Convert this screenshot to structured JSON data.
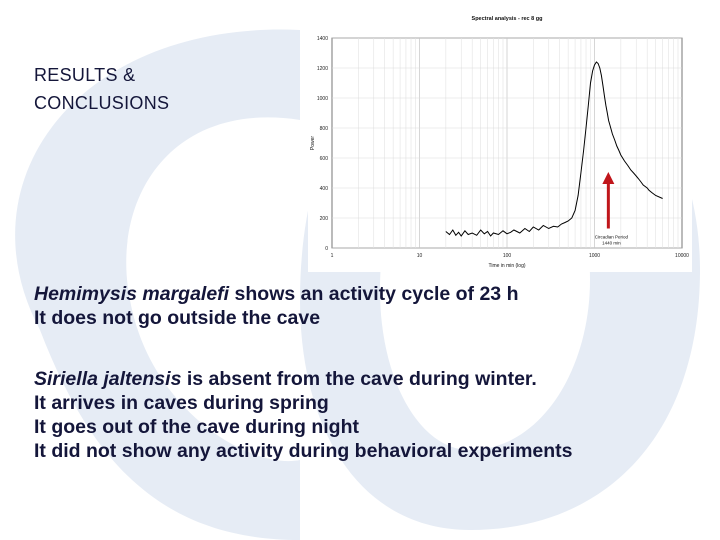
{
  "slide": {
    "title_line1": "RESULTS &",
    "title_line2": "CONCLUSIONS",
    "block1": {
      "species": "Hemimysis margalefi",
      "line1_rest": " shows an activity cycle of 23 h",
      "line2": "It does not go outside the cave"
    },
    "block2": {
      "species": "Siriella jaltensis",
      "line1_rest": " is absent from the cave during winter.",
      "line2": "It arrives in caves during spring",
      "line3": "It goes out of the cave during night",
      "line4": "It did not show any activity during behavioral experiments"
    }
  },
  "colors": {
    "text": "#14163a",
    "watermark": "#e6ecf5",
    "curve": "#000000",
    "arrow": "#c0161b"
  },
  "chart_data": {
    "type": "line",
    "title": "Spectral analysis - rec 8 gg",
    "xlabel": "Time in min (log)",
    "ylabel": "Power",
    "xscale": "log",
    "xlim": [
      1,
      10000
    ],
    "ylim": [
      0,
      1400
    ],
    "xticks": [
      "1",
      "10",
      "100",
      "1000",
      "10000"
    ],
    "yticks": [
      "0",
      "200",
      "400",
      "600",
      "800",
      "1000",
      "1200",
      "1400"
    ],
    "grid": true,
    "series": [
      {
        "name": "",
        "x": [
          20,
          22,
          24,
          26,
          28,
          30,
          33,
          36,
          40,
          45,
          50,
          55,
          60,
          65,
          70,
          80,
          90,
          100,
          110,
          120,
          140,
          160,
          180,
          200,
          230,
          260,
          300,
          340,
          380,
          420,
          460,
          500,
          550,
          600,
          650,
          700,
          750,
          800,
          850,
          900,
          950,
          1000,
          1050,
          1100,
          1150,
          1200,
          1250,
          1300,
          1350,
          1400,
          1450,
          1500,
          1600,
          1700,
          1800,
          1900,
          2000,
          2200,
          2400,
          2600,
          2800,
          3000,
          3200,
          3400,
          3600,
          3800,
          4000,
          4200,
          4500,
          5000,
          6000
        ],
        "y": [
          110,
          90,
          120,
          85,
          105,
          80,
          115,
          90,
          100,
          85,
          120,
          95,
          110,
          80,
          100,
          90,
          115,
          95,
          105,
          120,
          100,
          130,
          110,
          140,
          120,
          150,
          130,
          145,
          140,
          160,
          170,
          180,
          200,
          250,
          350,
          500,
          650,
          800,
          950,
          1100,
          1180,
          1220,
          1240,
          1230,
          1200,
          1150,
          1080,
          1010,
          950,
          900,
          850,
          820,
          760,
          720,
          680,
          650,
          620,
          580,
          550,
          520,
          500,
          480,
          460,
          440,
          420,
          410,
          400,
          385,
          370,
          350,
          330
        ]
      }
    ],
    "annotations": [
      {
        "text_line1": "Circadian Period",
        "text_line2": "1440 min",
        "x": 1440,
        "marker": "arrow"
      }
    ]
  }
}
